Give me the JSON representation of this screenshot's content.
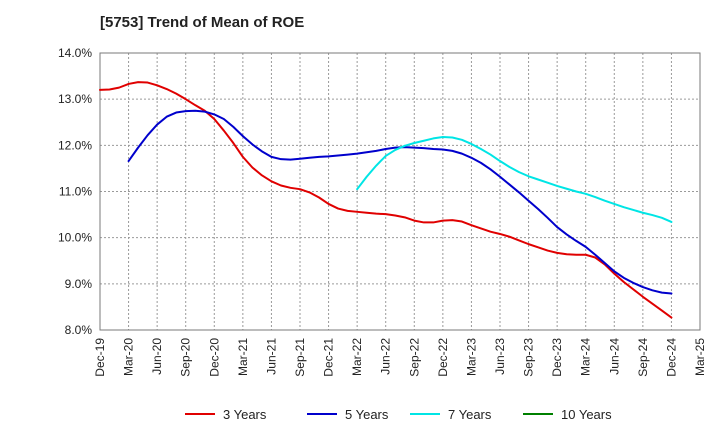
{
  "chart_data": {
    "type": "line",
    "title": "[5753]  Trend of Mean of ROE",
    "xlabel": "",
    "ylabel": "",
    "ylim": [
      8.0,
      14.0
    ],
    "y_ticks": [
      8.0,
      9.0,
      10.0,
      11.0,
      12.0,
      13.0,
      14.0
    ],
    "y_tick_format": "%",
    "x_categories": [
      "Dec-19",
      "Mar-20",
      "Jun-20",
      "Sep-20",
      "Dec-20",
      "Mar-21",
      "Jun-21",
      "Sep-21",
      "Dec-21",
      "Mar-22",
      "Jun-22",
      "Sep-22",
      "Dec-22",
      "Mar-23",
      "Jun-23",
      "Sep-23",
      "Dec-23",
      "Mar-24",
      "Jun-24",
      "Sep-24",
      "Dec-24",
      "Mar-25"
    ],
    "grid": true,
    "legend_position": "bottom",
    "series": [
      {
        "name": "3 Years",
        "color": "#e00000",
        "points": [
          [
            "Dec-19",
            13.2
          ],
          [
            "Jan-20",
            13.21
          ],
          [
            "Feb-20",
            13.25
          ],
          [
            "Mar-20",
            13.33
          ],
          [
            "Apr-20",
            13.37
          ],
          [
            "May-20",
            13.36
          ],
          [
            "Jun-20",
            13.3
          ],
          [
            "Jul-20",
            13.22
          ],
          [
            "Aug-20",
            13.12
          ],
          [
            "Sep-20",
            13.0
          ],
          [
            "Oct-20",
            12.87
          ],
          [
            "Nov-20",
            12.75
          ],
          [
            "Dec-20",
            12.57
          ],
          [
            "Jan-21",
            12.32
          ],
          [
            "Feb-21",
            12.05
          ],
          [
            "Mar-21",
            11.75
          ],
          [
            "Apr-21",
            11.52
          ],
          [
            "May-21",
            11.35
          ],
          [
            "Jun-21",
            11.22
          ],
          [
            "Jul-21",
            11.13
          ],
          [
            "Aug-21",
            11.08
          ],
          [
            "Sep-21",
            11.05
          ],
          [
            "Oct-21",
            10.98
          ],
          [
            "Nov-21",
            10.87
          ],
          [
            "Dec-21",
            10.73
          ],
          [
            "Jan-22",
            10.63
          ],
          [
            "Feb-22",
            10.58
          ],
          [
            "Mar-22",
            10.56
          ],
          [
            "Apr-22",
            10.54
          ],
          [
            "May-22",
            10.52
          ],
          [
            "Jun-22",
            10.51
          ],
          [
            "Jul-22",
            10.48
          ],
          [
            "Aug-22",
            10.44
          ],
          [
            "Sep-22",
            10.37
          ],
          [
            "Oct-22",
            10.33
          ],
          [
            "Nov-22",
            10.33
          ],
          [
            "Dec-22",
            10.37
          ],
          [
            "Jan-23",
            10.38
          ],
          [
            "Feb-23",
            10.35
          ],
          [
            "Mar-23",
            10.27
          ],
          [
            "Apr-23",
            10.2
          ],
          [
            "May-23",
            10.13
          ],
          [
            "Jun-23",
            10.08
          ],
          [
            "Jul-23",
            10.02
          ],
          [
            "Aug-23",
            9.94
          ],
          [
            "Sep-23",
            9.86
          ],
          [
            "Oct-23",
            9.79
          ],
          [
            "Nov-23",
            9.72
          ],
          [
            "Dec-23",
            9.67
          ],
          [
            "Jan-24",
            9.64
          ],
          [
            "Feb-24",
            9.63
          ],
          [
            "Mar-24",
            9.63
          ],
          [
            "Apr-24",
            9.57
          ],
          [
            "May-24",
            9.42
          ],
          [
            "Jun-24",
            9.22
          ],
          [
            "Jul-24",
            9.04
          ],
          [
            "Aug-24",
            8.88
          ],
          [
            "Sep-24",
            8.72
          ],
          [
            "Oct-24",
            8.57
          ],
          [
            "Nov-24",
            8.42
          ],
          [
            "Dec-24",
            8.27
          ]
        ]
      },
      {
        "name": "5 Years",
        "color": "#0000cc",
        "points": [
          [
            "Mar-20",
            11.66
          ],
          [
            "Apr-20",
            11.95
          ],
          [
            "May-20",
            12.22
          ],
          [
            "Jun-20",
            12.45
          ],
          [
            "Jul-20",
            12.62
          ],
          [
            "Aug-20",
            12.71
          ],
          [
            "Sep-20",
            12.74
          ],
          [
            "Oct-20",
            12.75
          ],
          [
            "Nov-20",
            12.73
          ],
          [
            "Dec-20",
            12.67
          ],
          [
            "Jan-21",
            12.57
          ],
          [
            "Feb-21",
            12.4
          ],
          [
            "Mar-21",
            12.2
          ],
          [
            "Apr-21",
            12.02
          ],
          [
            "May-21",
            11.87
          ],
          [
            "Jun-21",
            11.75
          ],
          [
            "Jul-21",
            11.7
          ],
          [
            "Aug-21",
            11.69
          ],
          [
            "Sep-21",
            11.71
          ],
          [
            "Oct-21",
            11.73
          ],
          [
            "Nov-21",
            11.75
          ],
          [
            "Dec-21",
            11.76
          ],
          [
            "Jan-22",
            11.78
          ],
          [
            "Feb-22",
            11.8
          ],
          [
            "Mar-22",
            11.82
          ],
          [
            "Apr-22",
            11.85
          ],
          [
            "May-22",
            11.88
          ],
          [
            "Jun-22",
            11.92
          ],
          [
            "Jul-22",
            11.95
          ],
          [
            "Aug-22",
            11.96
          ],
          [
            "Sep-22",
            11.95
          ],
          [
            "Oct-22",
            11.94
          ],
          [
            "Nov-22",
            11.92
          ],
          [
            "Dec-22",
            11.91
          ],
          [
            "Jan-23",
            11.88
          ],
          [
            "Feb-23",
            11.82
          ],
          [
            "Mar-23",
            11.73
          ],
          [
            "Apr-23",
            11.62
          ],
          [
            "May-23",
            11.48
          ],
          [
            "Jun-23",
            11.32
          ],
          [
            "Jul-23",
            11.15
          ],
          [
            "Aug-23",
            10.98
          ],
          [
            "Sep-23",
            10.8
          ],
          [
            "Oct-23",
            10.62
          ],
          [
            "Nov-23",
            10.43
          ],
          [
            "Dec-23",
            10.23
          ],
          [
            "Jan-24",
            10.07
          ],
          [
            "Feb-24",
            9.93
          ],
          [
            "Mar-24",
            9.8
          ],
          [
            "Apr-24",
            9.63
          ],
          [
            "May-24",
            9.45
          ],
          [
            "Jun-24",
            9.27
          ],
          [
            "Jul-24",
            9.13
          ],
          [
            "Aug-24",
            9.02
          ],
          [
            "Sep-24",
            8.93
          ],
          [
            "Oct-24",
            8.86
          ],
          [
            "Nov-24",
            8.81
          ],
          [
            "Dec-24",
            8.79
          ]
        ]
      },
      {
        "name": "7 Years",
        "color": "#00e5e5",
        "points": [
          [
            "Mar-22",
            11.05
          ],
          [
            "Apr-22",
            11.32
          ],
          [
            "May-22",
            11.56
          ],
          [
            "Jun-22",
            11.77
          ],
          [
            "Jul-22",
            11.9
          ],
          [
            "Aug-22",
            11.99
          ],
          [
            "Sep-22",
            12.05
          ],
          [
            "Oct-22",
            12.1
          ],
          [
            "Nov-22",
            12.15
          ],
          [
            "Dec-22",
            12.18
          ],
          [
            "Jan-23",
            12.17
          ],
          [
            "Feb-23",
            12.12
          ],
          [
            "Mar-23",
            12.03
          ],
          [
            "Apr-23",
            11.92
          ],
          [
            "May-23",
            11.8
          ],
          [
            "Jun-23",
            11.66
          ],
          [
            "Jul-23",
            11.53
          ],
          [
            "Aug-23",
            11.42
          ],
          [
            "Sep-23",
            11.33
          ],
          [
            "Oct-23",
            11.26
          ],
          [
            "Nov-23",
            11.19
          ],
          [
            "Dec-23",
            11.12
          ],
          [
            "Jan-24",
            11.06
          ],
          [
            "Feb-24",
            11.0
          ],
          [
            "Mar-24",
            10.95
          ],
          [
            "Apr-24",
            10.88
          ],
          [
            "May-24",
            10.8
          ],
          [
            "Jun-24",
            10.73
          ],
          [
            "Jul-24",
            10.66
          ],
          [
            "Aug-24",
            10.6
          ],
          [
            "Sep-24",
            10.54
          ],
          [
            "Oct-24",
            10.49
          ],
          [
            "Nov-24",
            10.43
          ],
          [
            "Dec-24",
            10.34
          ]
        ]
      },
      {
        "name": "10 Years",
        "color": "#008000",
        "points": []
      }
    ]
  }
}
